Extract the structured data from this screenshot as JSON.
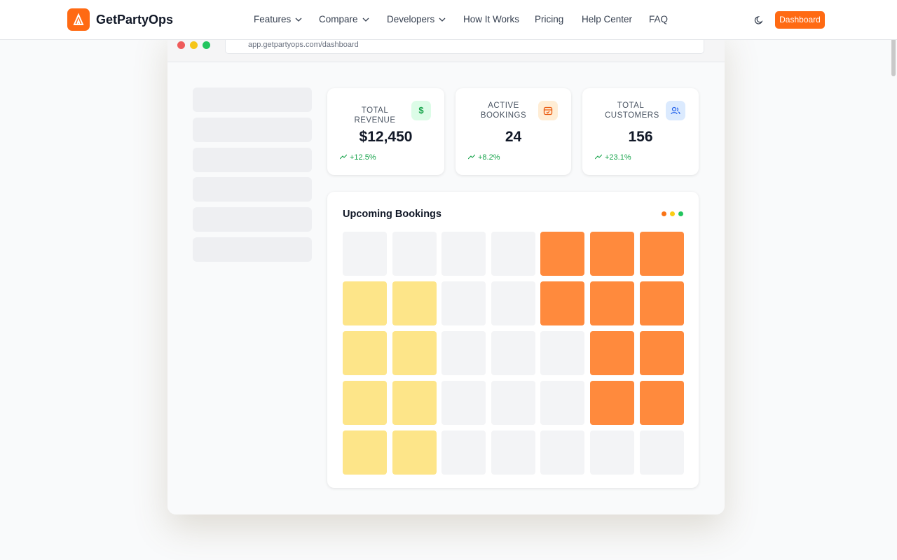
{
  "header": {
    "brand": "GetPartyOps",
    "nav": [
      "Features",
      "Compare",
      "Developers",
      "How It Works",
      "Pricing",
      "Help Center",
      "FAQ"
    ],
    "dropdown_nav": [
      true,
      true,
      true,
      false,
      false,
      false,
      false
    ],
    "button": "Dashboard"
  },
  "browser": {
    "url": "app.getpartyops.com/dashboard"
  },
  "stats": [
    {
      "label": "TOTAL REVENUE",
      "value": "$12,450",
      "change": "+12.5%",
      "icon": "$"
    },
    {
      "label": "ACTIVE BOOKINGS",
      "value": "24",
      "change": "+8.2%",
      "icon": "cal"
    },
    {
      "label": "TOTAL CUSTOMERS",
      "value": "156",
      "change": "+23.1%",
      "icon": "users"
    }
  ],
  "calendar": {
    "title": "Upcoming Bookings",
    "cells": [
      [
        "#f3f4f6",
        "#f3f4f6",
        "#f3f4f6",
        "#f3f4f6",
        "#ff8a3d",
        "#ff8a3d",
        "#ff8a3d"
      ],
      [
        "#fde589",
        "#fde589",
        "#f3f4f6",
        "#f3f4f6",
        "#ff8a3d",
        "#ff8a3d",
        "#ff8a3d"
      ],
      [
        "#fde589",
        "#fde589",
        "#f3f4f6",
        "#f3f4f6",
        "#f3f4f6",
        "#ff8a3d",
        "#ff8a3d"
      ],
      [
        "#fde589",
        "#fde589",
        "#f3f4f6",
        "#f3f4f6",
        "#f3f4f6",
        "#ff8a3d",
        "#ff8a3d"
      ],
      [
        "#fde589",
        "#fde589",
        "#f3f4f6",
        "#f3f4f6",
        "#f3f4f6",
        "#f3f4f6",
        "#f3f4f6"
      ]
    ]
  }
}
